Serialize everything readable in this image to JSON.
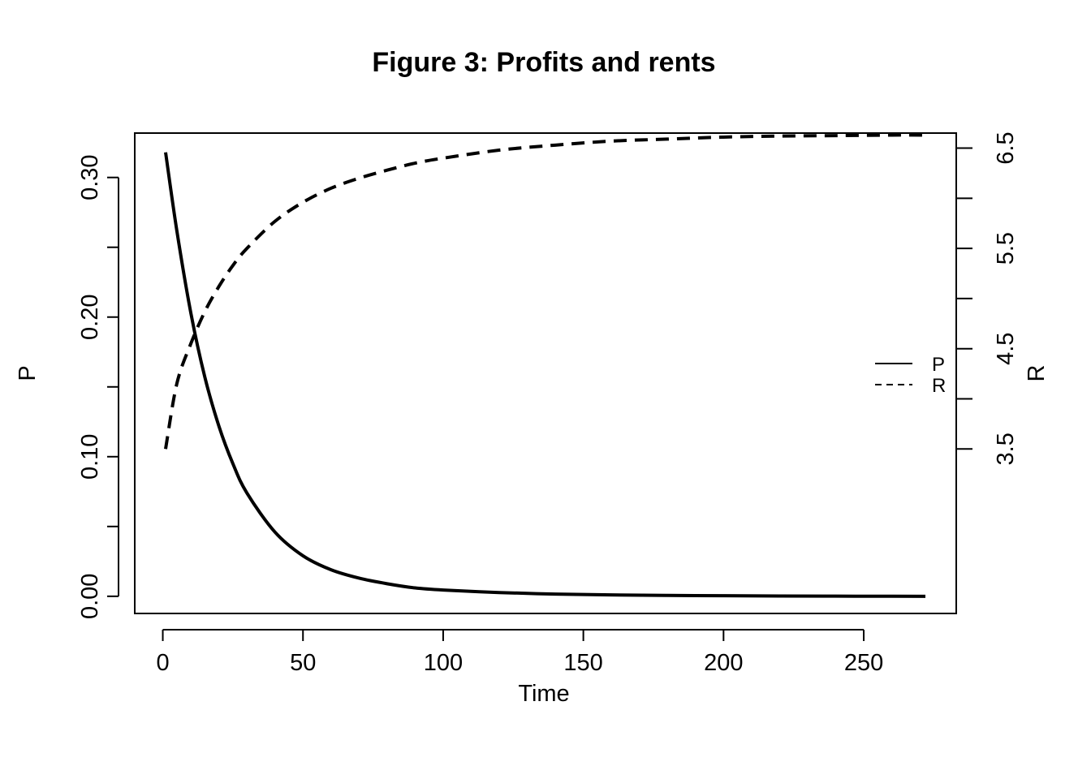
{
  "chart_data": {
    "type": "line",
    "title": "Figure 3: Profits and rents",
    "xlabel": "Time",
    "ylabel_left": "P",
    "ylabel_right": "R",
    "xlim": [
      -10,
      283
    ],
    "ylim_left": [
      -0.0123,
      0.3318
    ],
    "ylim_right": [
      1.86,
      6.65
    ],
    "x_ticks": [
      "0",
      "50",
      "100",
      "150",
      "200",
      "250"
    ],
    "y_left_ticks": [
      "0.00",
      "0.10",
      "0.20",
      "0.30"
    ],
    "y_left_minor_ticks": [
      0.05,
      0.15,
      0.25
    ],
    "y_right_ticks": [
      "3.5",
      "4.5",
      "5.5",
      "6.5"
    ],
    "y_right_minor_ticks": [
      4.0,
      5.0,
      6.0
    ],
    "grid": false,
    "legend_position": "right",
    "series": [
      {
        "name": "P",
        "axis": "left",
        "style": "solid",
        "x": [
          1,
          5,
          10,
          15,
          20,
          25,
          30,
          40,
          50,
          60,
          70,
          80,
          90,
          100,
          120,
          140,
          160,
          180,
          200,
          220,
          240,
          260,
          272
        ],
        "y": [
          0.318,
          0.262,
          0.203,
          0.157,
          0.122,
          0.095,
          0.074,
          0.046,
          0.029,
          0.019,
          0.013,
          0.009,
          0.006,
          0.0045,
          0.0027,
          0.0016,
          0.001,
          0.0006,
          0.0004,
          0.0002,
          0.0001,
          5e-05,
          0.0
        ]
      },
      {
        "name": "R",
        "axis": "right",
        "style": "dashed",
        "x": [
          1,
          5,
          10,
          15,
          20,
          25,
          30,
          40,
          50,
          60,
          70,
          80,
          90,
          100,
          120,
          140,
          160,
          180,
          200,
          220,
          240,
          260,
          272
        ],
        "y": [
          3.5,
          4.15,
          4.55,
          4.87,
          5.12,
          5.33,
          5.5,
          5.77,
          5.96,
          6.1,
          6.2,
          6.28,
          6.35,
          6.4,
          6.48,
          6.53,
          6.57,
          6.59,
          6.61,
          6.62,
          6.625,
          6.63,
          6.63
        ]
      }
    ]
  }
}
